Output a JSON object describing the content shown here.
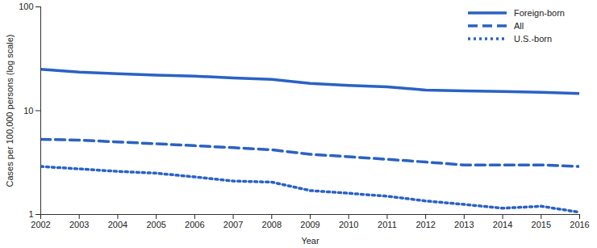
{
  "chart_data": {
    "type": "line",
    "x": [
      2002,
      2003,
      2004,
      2005,
      2006,
      2007,
      2008,
      2009,
      2010,
      2011,
      2012,
      2013,
      2014,
      2015,
      2016
    ],
    "xlim": [
      2002,
      2016
    ],
    "xticks": [
      2002,
      2003,
      2004,
      2005,
      2006,
      2007,
      2008,
      2009,
      2010,
      2011,
      2012,
      2013,
      2014,
      2015,
      2016
    ],
    "ylim": [
      1,
      100
    ],
    "yticks": [
      1,
      10,
      100
    ],
    "log": "y",
    "grid": false,
    "legend": "top right",
    "xlabel": "Year",
    "ylabel": "Cases per 100,000 persons (log scale)",
    "series": [
      {
        "name": "Foreign-born",
        "color": "#2a62c4",
        "line_style": "solid",
        "values": [
          25,
          23.5,
          22.7,
          22,
          21.5,
          20.7,
          20,
          18.3,
          17.5,
          17,
          15.8,
          15.5,
          15.3,
          15,
          14.6
        ]
      },
      {
        "name": "All",
        "color": "#2a62c4",
        "line_style": "dashed",
        "values": [
          5.3,
          5.2,
          5.0,
          4.8,
          4.6,
          4.4,
          4.2,
          3.8,
          3.6,
          3.4,
          3.2,
          3.0,
          3.0,
          3.0,
          2.9
        ]
      },
      {
        "name": "U.S.-born",
        "color": "#2a62c4",
        "line_style": "dotted",
        "values": [
          2.9,
          2.75,
          2.6,
          2.5,
          2.3,
          2.1,
          2.05,
          1.7,
          1.6,
          1.5,
          1.35,
          1.25,
          1.15,
          1.2,
          1.05
        ]
      }
    ]
  }
}
